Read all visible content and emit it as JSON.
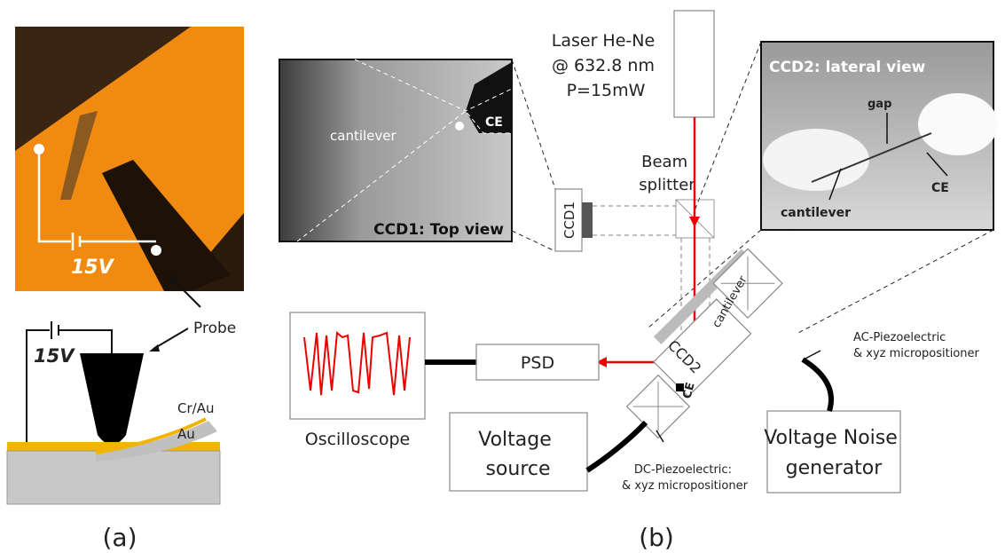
{
  "panel_a": {
    "photo_voltage": "15V",
    "probe": "Probe",
    "schematic_voltage": "15V",
    "top_layer": "Cr/Au",
    "bottom_layer": "Au",
    "label": "(a)"
  },
  "panel_b": {
    "ccd1_view": {
      "title": "CCD1: Top view",
      "cantilever": "cantilever",
      "ce": "CE"
    },
    "laser": [
      "Laser He-Ne",
      "@ 632.8 nm",
      "P=15mW"
    ],
    "ccd2_view": {
      "title": "CCD2: lateral view",
      "gap": "gap",
      "cantilever": "cantilever",
      "ce": "CE"
    },
    "beam_splitter": [
      "Beam",
      "splitter"
    ],
    "ccd1": "CCD1",
    "ccd2": "CCD2",
    "cantilever": "cantilever",
    "ce": "CE",
    "psd": "PSD",
    "oscilloscope": "Oscilloscope",
    "voltage_source": [
      "Voltage",
      "source"
    ],
    "noise_generator": [
      "Voltage Noise",
      "generator"
    ],
    "ac_piezo": [
      "AC-Piezoelectric",
      "& xyz micropositioner"
    ],
    "dc_piezo": [
      "DC-Piezoelectric:",
      "& xyz micropositioner"
    ],
    "label": "(b)"
  }
}
